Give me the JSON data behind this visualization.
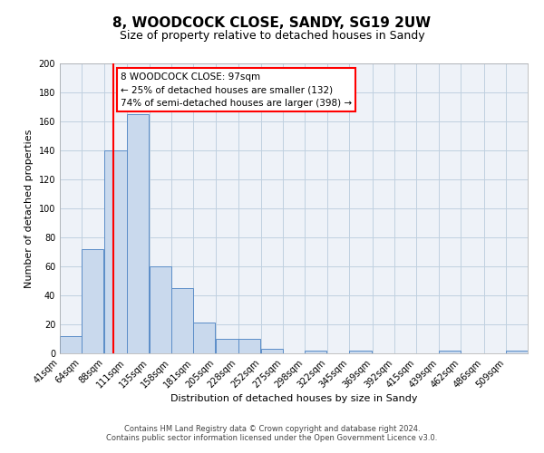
{
  "title": "8, WOODCOCK CLOSE, SANDY, SG19 2UW",
  "subtitle": "Size of property relative to detached houses in Sandy",
  "xlabel": "Distribution of detached houses by size in Sandy",
  "ylabel": "Number of detached properties",
  "bin_labels": [
    "41sqm",
    "64sqm",
    "88sqm",
    "111sqm",
    "135sqm",
    "158sqm",
    "181sqm",
    "205sqm",
    "228sqm",
    "252sqm",
    "275sqm",
    "298sqm",
    "322sqm",
    "345sqm",
    "369sqm",
    "392sqm",
    "415sqm",
    "439sqm",
    "462sqm",
    "486sqm",
    "509sqm"
  ],
  "bin_edges": [
    41,
    64,
    88,
    111,
    135,
    158,
    181,
    205,
    228,
    252,
    275,
    298,
    322,
    345,
    369,
    392,
    415,
    439,
    462,
    486,
    509
  ],
  "bar_heights": [
    12,
    72,
    140,
    165,
    60,
    45,
    21,
    10,
    10,
    3,
    0,
    2,
    0,
    2,
    0,
    0,
    0,
    2,
    0,
    0,
    2
  ],
  "bar_color": "#c9d9ed",
  "bar_edge_color": "#5b8dc8",
  "grid_color": "#c0d0e0",
  "background_color": "#eef2f8",
  "red_line_x": 97,
  "annotation_lines": [
    "8 WOODCOCK CLOSE: 97sqm",
    "← 25% of detached houses are smaller (132)",
    "74% of semi-detached houses are larger (398) →"
  ],
  "ylim": [
    0,
    200
  ],
  "yticks": [
    0,
    20,
    40,
    60,
    80,
    100,
    120,
    140,
    160,
    180,
    200
  ],
  "footer_line1": "Contains HM Land Registry data © Crown copyright and database right 2024.",
  "footer_line2": "Contains public sector information licensed under the Open Government Licence v3.0.",
  "title_fontsize": 11,
  "subtitle_fontsize": 9,
  "axis_label_fontsize": 8,
  "tick_fontsize": 7,
  "annotation_fontsize": 7.5,
  "footer_fontsize": 6
}
